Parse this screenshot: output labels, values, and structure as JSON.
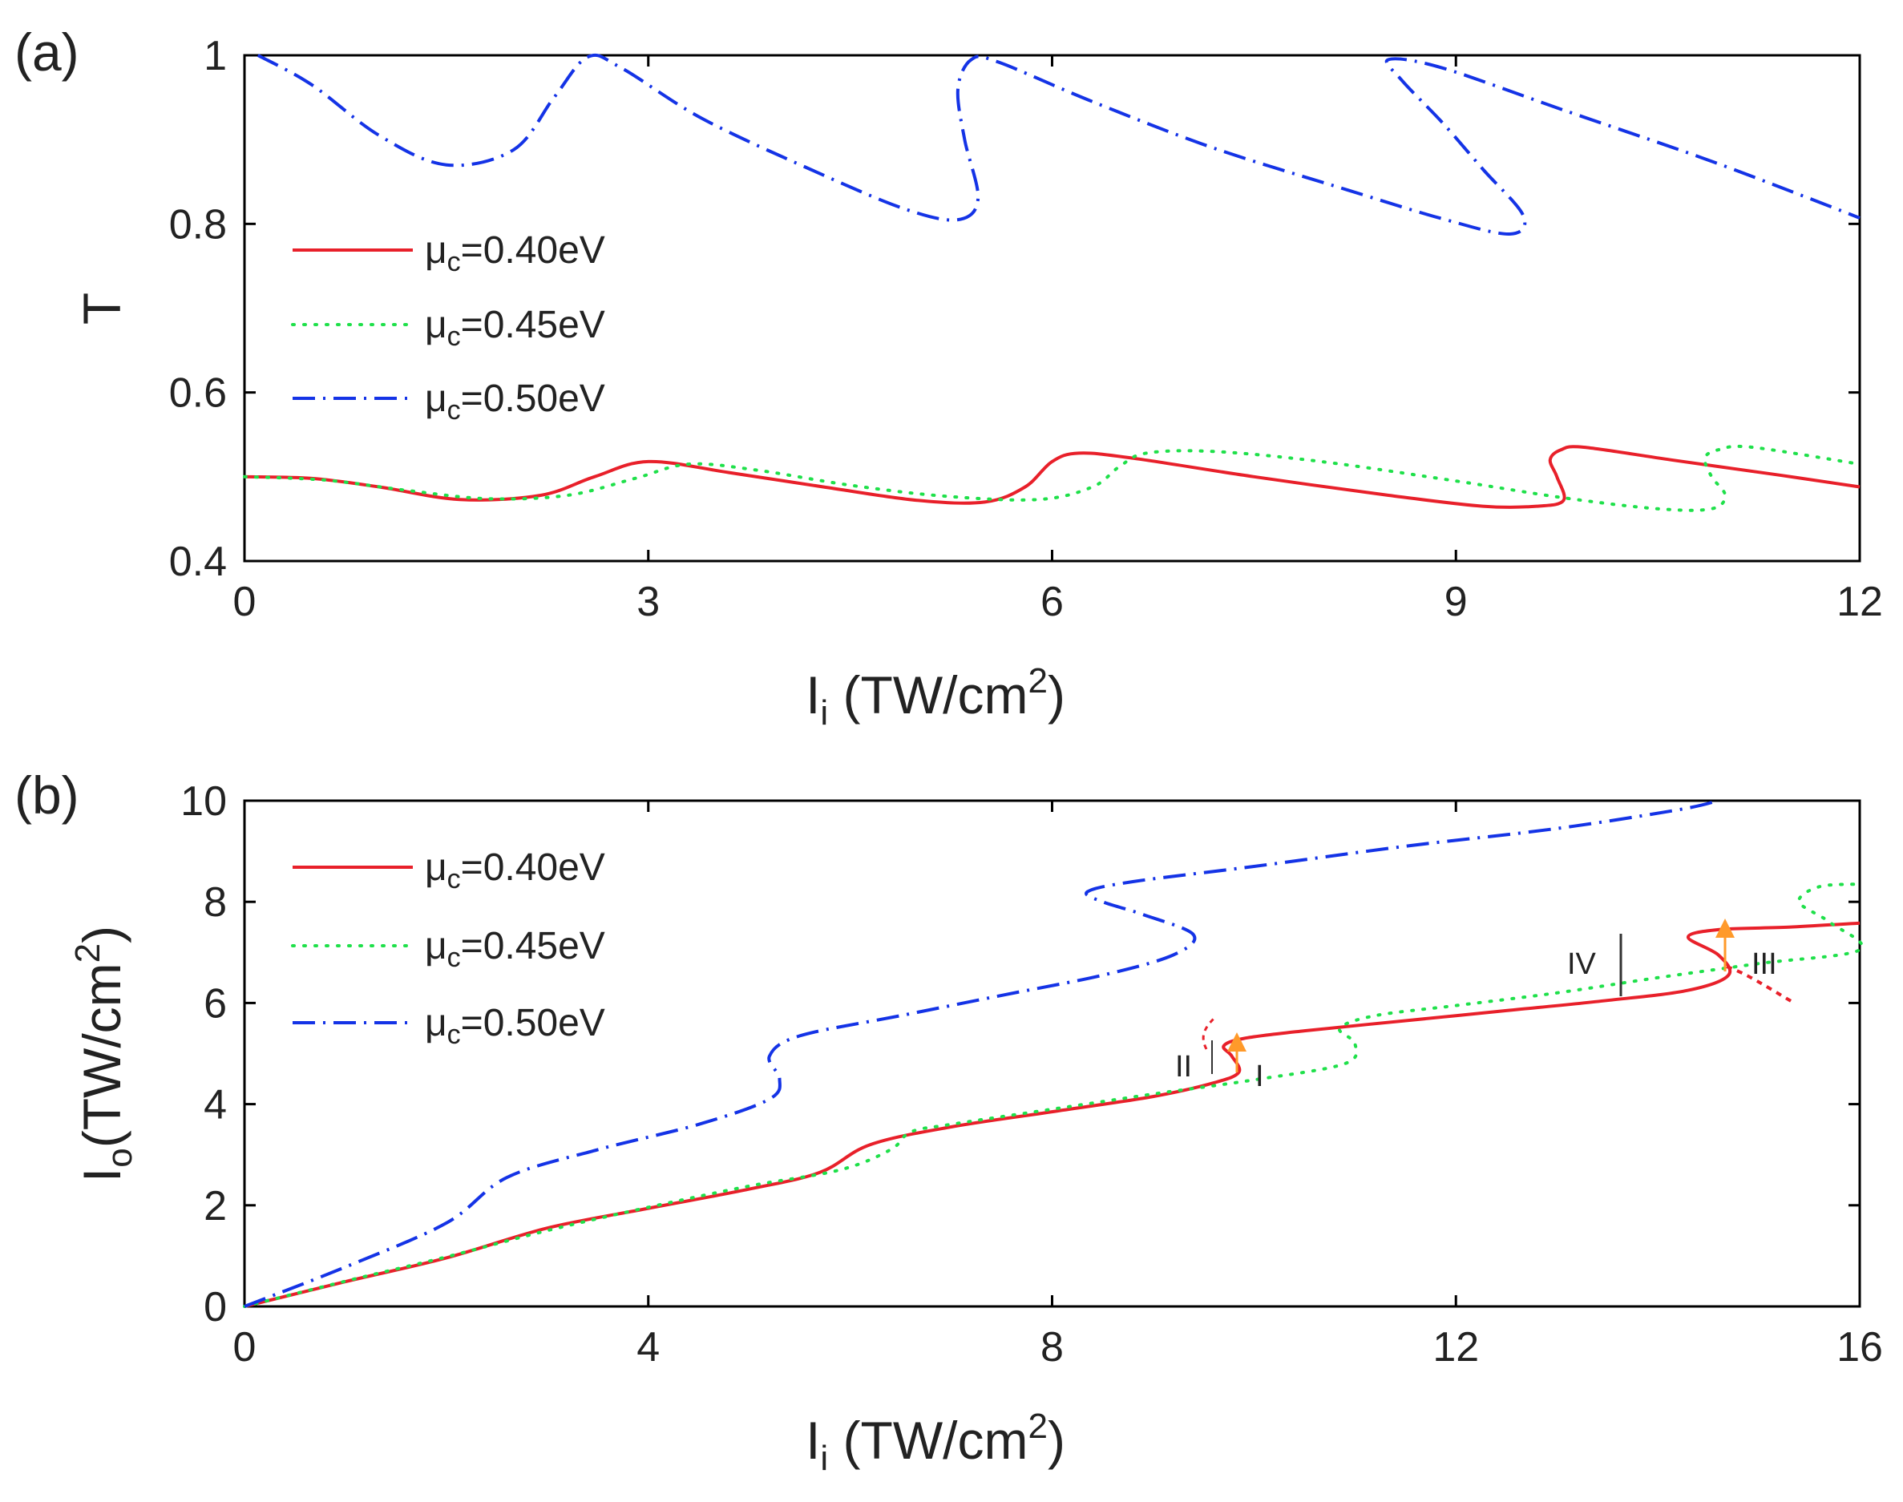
{
  "chart_data": [
    {
      "panel": "(a)",
      "type": "line",
      "xlabel": "I",
      "xlabel_sub": "i",
      "xlabel_unit": " (TW/cm",
      "xlabel_sup": "2",
      "xlabel_close": ")",
      "ylabel": "T",
      "xlim": [
        0,
        12
      ],
      "ylim": [
        0.4,
        1.0
      ],
      "xticks": [
        0,
        3,
        6,
        9,
        12
      ],
      "xtick_labels": [
        "0",
        "3",
        "6",
        "9",
        "12"
      ],
      "yticks": [
        0.4,
        0.6,
        0.8,
        1.0
      ],
      "ytick_labels": [
        "0.4",
        "0.6",
        "0.8",
        "1"
      ],
      "legend_position": "middle-left",
      "series": [
        {
          "name": "μc=0.40eV",
          "legend_mu": "μ",
          "legend_sub": "c",
          "legend_rest": "=0.40eV",
          "color": "#e8202a",
          "style": "solid",
          "points": [
            [
              0,
              0.5
            ],
            [
              0.5,
              0.498
            ],
            [
              1.0,
              0.488
            ],
            [
              1.6,
              0.473
            ],
            [
              2.2,
              0.478
            ],
            [
              2.6,
              0.5
            ],
            [
              3.0,
              0.518
            ],
            [
              3.6,
              0.505
            ],
            [
              4.3,
              0.488
            ],
            [
              5.0,
              0.472
            ],
            [
              5.5,
              0.47
            ],
            [
              5.8,
              0.488
            ],
            [
              6.0,
              0.518
            ],
            [
              6.2,
              0.528
            ],
            [
              6.6,
              0.522
            ],
            [
              7.5,
              0.5
            ],
            [
              8.5,
              0.478
            ],
            [
              9.2,
              0.465
            ],
            [
              9.6,
              0.465
            ],
            [
              9.8,
              0.472
            ],
            [
              9.75,
              0.5
            ],
            [
              9.7,
              0.52
            ],
            [
              9.78,
              0.532
            ],
            [
              9.95,
              0.535
            ],
            [
              10.6,
              0.52
            ],
            [
              11.4,
              0.502
            ],
            [
              12,
              0.488
            ]
          ]
        },
        {
          "name": "μc=0.45eV",
          "legend_mu": "μ",
          "legend_sub": "c",
          "legend_rest": "=0.45eV",
          "color": "#1fe04a",
          "style": "dotted",
          "points": [
            [
              0,
              0.5
            ],
            [
              0.6,
              0.496
            ],
            [
              1.2,
              0.484
            ],
            [
              1.8,
              0.474
            ],
            [
              2.4,
              0.478
            ],
            [
              2.9,
              0.498
            ],
            [
              3.3,
              0.515
            ],
            [
              3.8,
              0.508
            ],
            [
              4.5,
              0.49
            ],
            [
              5.2,
              0.477
            ],
            [
              5.9,
              0.473
            ],
            [
              6.3,
              0.488
            ],
            [
              6.5,
              0.512
            ],
            [
              6.7,
              0.528
            ],
            [
              7.2,
              0.53
            ],
            [
              8.0,
              0.518
            ],
            [
              9.0,
              0.495
            ],
            [
              9.8,
              0.475
            ],
            [
              10.5,
              0.462
            ],
            [
              10.9,
              0.462
            ],
            [
              11.0,
              0.478
            ],
            [
              10.9,
              0.5
            ],
            [
              10.85,
              0.522
            ],
            [
              10.95,
              0.532
            ],
            [
              11.2,
              0.535
            ],
            [
              12,
              0.515
            ]
          ]
        },
        {
          "name": "μc=0.50eV",
          "legend_mu": "μ",
          "legend_sub": "c",
          "legend_rest": "=0.50eV",
          "color": "#1433e6",
          "style": "dashdot",
          "points": [
            [
              0.1,
              1.0
            ],
            [
              0.5,
              0.965
            ],
            [
              1.0,
              0.905
            ],
            [
              1.5,
              0.87
            ],
            [
              2.0,
              0.888
            ],
            [
              2.3,
              0.95
            ],
            [
              2.55,
              0.998
            ],
            [
              2.8,
              0.985
            ],
            [
              3.4,
              0.925
            ],
            [
              4.2,
              0.865
            ],
            [
              4.9,
              0.818
            ],
            [
              5.3,
              0.805
            ],
            [
              5.45,
              0.83
            ],
            [
              5.35,
              0.9
            ],
            [
              5.3,
              0.96
            ],
            [
              5.4,
              0.995
            ],
            [
              5.6,
              0.992
            ],
            [
              6.3,
              0.945
            ],
            [
              7.2,
              0.89
            ],
            [
              8.2,
              0.84
            ],
            [
              8.9,
              0.806
            ],
            [
              9.4,
              0.788
            ],
            [
              9.5,
              0.81
            ],
            [
              9.2,
              0.865
            ],
            [
              8.9,
              0.92
            ],
            [
              8.6,
              0.97
            ],
            [
              8.5,
              0.995
            ],
            [
              8.9,
              0.985
            ],
            [
              9.8,
              0.935
            ],
            [
              10.8,
              0.88
            ],
            [
              11.5,
              0.838
            ],
            [
              12.0,
              0.807
            ]
          ]
        }
      ]
    },
    {
      "panel": "(b)",
      "type": "line",
      "xlabel": "I",
      "xlabel_sub": "i",
      "xlabel_unit": " (TW/cm",
      "xlabel_sup": "2",
      "xlabel_close": ")",
      "ylabel": "I",
      "ylabel_sub": "o",
      "ylabel_unit": "(TW/cm",
      "ylabel_sup": "2",
      "ylabel_close": ")",
      "xlim": [
        0,
        16
      ],
      "ylim": [
        0,
        10
      ],
      "xticks": [
        0,
        4,
        8,
        12,
        16
      ],
      "xtick_labels": [
        "0",
        "4",
        "8",
        "12",
        "16"
      ],
      "yticks": [
        0,
        2,
        4,
        6,
        8,
        10
      ],
      "ytick_labels": [
        "0",
        "2",
        "4",
        "6",
        "8",
        "10"
      ],
      "legend_position": "top-left",
      "annotations": [
        "II",
        "I",
        "IV",
        "III"
      ],
      "series": [
        {
          "name": "μc=0.40eV",
          "legend_mu": "μ",
          "legend_sub": "c",
          "legend_rest": "=0.40eV",
          "color": "#e8202a",
          "style": "solid",
          "points": [
            [
              0,
              0
            ],
            [
              1,
              0.49
            ],
            [
              2,
              0.96
            ],
            [
              3,
              1.55
            ],
            [
              4,
              1.94
            ],
            [
              5,
              2.32
            ],
            [
              5.7,
              2.65
            ],
            [
              6.2,
              3.2
            ],
            [
              7,
              3.55
            ],
            [
              8,
              3.85
            ],
            [
              9,
              4.15
            ],
            [
              9.6,
              4.42
            ],
            [
              9.85,
              4.63
            ],
            [
              9.78,
              4.95
            ],
            [
              9.7,
              5.15
            ],
            [
              9.9,
              5.3
            ],
            [
              10.5,
              5.45
            ],
            [
              11.5,
              5.65
            ],
            [
              12.5,
              5.85
            ],
            [
              13.5,
              6.05
            ],
            [
              14.3,
              6.25
            ],
            [
              14.7,
              6.55
            ],
            [
              14.6,
              6.95
            ],
            [
              14.3,
              7.3
            ],
            [
              14.6,
              7.45
            ],
            [
              15.3,
              7.5
            ],
            [
              16,
              7.58
            ]
          ]
        },
        {
          "name": "μc=0.45eV",
          "legend_mu": "μ",
          "legend_sub": "c",
          "legend_rest": "=0.45eV",
          "color": "#1fe04a",
          "style": "dotted",
          "points": [
            [
              0,
              0
            ],
            [
              1,
              0.5
            ],
            [
              2,
              0.98
            ],
            [
              3,
              1.5
            ],
            [
              4,
              1.96
            ],
            [
              5,
              2.38
            ],
            [
              5.9,
              2.7
            ],
            [
              6.4,
              3.1
            ],
            [
              6.6,
              3.45
            ],
            [
              7,
              3.6
            ],
            [
              8,
              3.9
            ],
            [
              9,
              4.2
            ],
            [
              10,
              4.48
            ],
            [
              10.9,
              4.8
            ],
            [
              11,
              5.2
            ],
            [
              10.85,
              5.5
            ],
            [
              11.2,
              5.75
            ],
            [
              12,
              5.95
            ],
            [
              13,
              6.2
            ],
            [
              14,
              6.5
            ],
            [
              15,
              6.78
            ],
            [
              16,
              7.05
            ],
            [
              15.7,
              7.6
            ],
            [
              15.4,
              8.0
            ],
            [
              15.6,
              8.3
            ],
            [
              16,
              8.35
            ]
          ]
        },
        {
          "name": "μc=0.50eV",
          "legend_mu": "μ",
          "legend_sub": "c",
          "legend_rest": "=0.50eV",
          "color": "#1433e6",
          "style": "dashdot",
          "points": [
            [
              0,
              0
            ],
            [
              1,
              0.78
            ],
            [
              2,
              1.65
            ],
            [
              2.6,
              2.55
            ],
            [
              3.5,
              3.1
            ],
            [
              4.5,
              3.6
            ],
            [
              5.2,
              4.1
            ],
            [
              5.3,
              4.5
            ],
            [
              5.2,
              4.95
            ],
            [
              5.5,
              5.35
            ],
            [
              6.5,
              5.75
            ],
            [
              7.5,
              6.15
            ],
            [
              8.5,
              6.55
            ],
            [
              9.2,
              6.95
            ],
            [
              9.4,
              7.35
            ],
            [
              8.9,
              7.75
            ],
            [
              8.5,
              8.0
            ],
            [
              8.35,
              8.2
            ],
            [
              8.8,
              8.4
            ],
            [
              10,
              8.7
            ],
            [
              11.5,
              9.1
            ],
            [
              13,
              9.45
            ],
            [
              14.2,
              9.82
            ],
            [
              14.6,
              10
            ]
          ]
        }
      ]
    }
  ],
  "labels": {
    "panel_a": "(a)",
    "panel_b": "(b)"
  }
}
